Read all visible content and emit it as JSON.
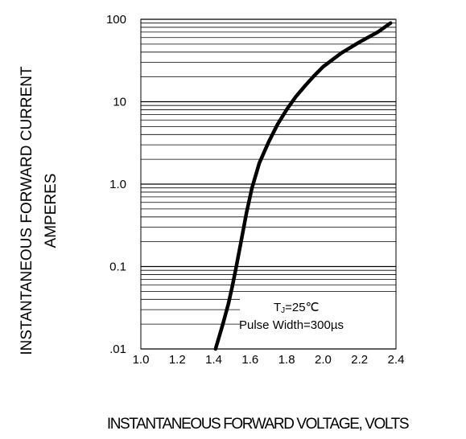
{
  "chart_data": {
    "type": "line",
    "title": "",
    "xlabel": "INSTANTANEOUS FORWARD VOLTAGE, VOLTS",
    "ylabel_lines": [
      "INSTANTANEOUS FORWARD CURRENT",
      "AMPERES"
    ],
    "x_scale": "linear",
    "y_scale": "log",
    "xlim": [
      1.0,
      2.4
    ],
    "ylim": [
      0.01,
      100
    ],
    "x_ticks": [
      1.0,
      1.2,
      1.4,
      1.6,
      1.8,
      2.0,
      2.2,
      2.4
    ],
    "x_tick_labels": [
      "1.0",
      "1.2",
      "1.4",
      "1.6",
      "1.8",
      "2.0",
      "2.2",
      "2.4"
    ],
    "y_ticks": [
      0.01,
      0.1,
      1,
      10,
      100
    ],
    "y_tick_labels": [
      ".01",
      "0.1",
      "1.0",
      "10",
      "100"
    ],
    "grid": "horizontal log gridlines only",
    "annotation": {
      "line1_main": "T",
      "line1_sub": "J",
      "line1_rest": "=25℃",
      "line2": "Pulse Width=300µs",
      "position": "bottom-right"
    },
    "series": [
      {
        "color": "#000000",
        "x": [
          1.41,
          1.45,
          1.48,
          1.5,
          1.52,
          1.55,
          1.58,
          1.61,
          1.65,
          1.7,
          1.75,
          1.8,
          1.85,
          1.9,
          1.95,
          2.0,
          2.1,
          2.2,
          2.3,
          2.37
        ],
        "y": [
          0.01,
          0.02,
          0.035,
          0.055,
          0.09,
          0.2,
          0.45,
          0.9,
          1.8,
          3.2,
          5.3,
          8.0,
          11.5,
          15.5,
          20.5,
          26.5,
          39,
          53,
          70,
          90
        ]
      }
    ]
  }
}
